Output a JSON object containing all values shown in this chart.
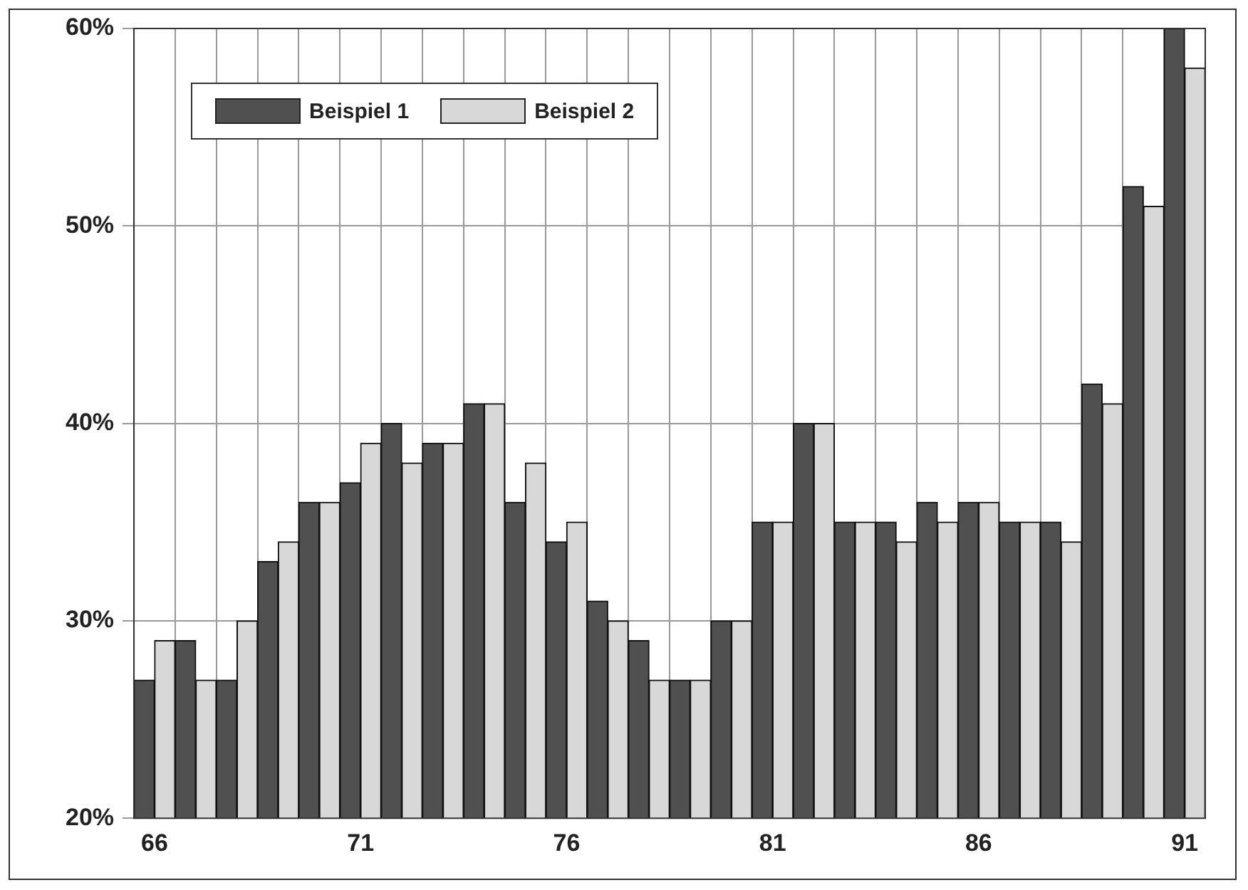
{
  "chart_data": {
    "type": "bar",
    "categories": [
      "66",
      null,
      null,
      null,
      null,
      "71",
      null,
      null,
      null,
      null,
      "76",
      null,
      null,
      null,
      null,
      "81",
      null,
      null,
      null,
      null,
      "86",
      null,
      null,
      null,
      null,
      "91"
    ],
    "series": [
      {
        "name": "Beispiel 1",
        "color": "#505050",
        "values": [
          27,
          29,
          27,
          33,
          36,
          37,
          40,
          39,
          41,
          36,
          34,
          31,
          29,
          27,
          30,
          35,
          40,
          35,
          35,
          36,
          36,
          35,
          35,
          42,
          52,
          60
        ]
      },
      {
        "name": "Beispiel 2",
        "color": "#d8d8d8",
        "values": [
          29,
          27,
          30,
          34,
          36,
          39,
          38,
          39,
          41,
          38,
          35,
          30,
          27,
          27,
          30,
          35,
          40,
          35,
          34,
          35,
          36,
          35,
          34,
          41,
          51,
          58
        ]
      }
    ],
    "ylim": [
      20,
      60
    ],
    "yticks": [
      {
        "value": 20,
        "label": "20%"
      },
      {
        "value": 30,
        "label": "30%"
      },
      {
        "value": 40,
        "label": "40%"
      },
      {
        "value": 50,
        "label": "50%"
      },
      {
        "value": 60,
        "label": "60%"
      }
    ],
    "grid": true,
    "legend": "top left"
  }
}
